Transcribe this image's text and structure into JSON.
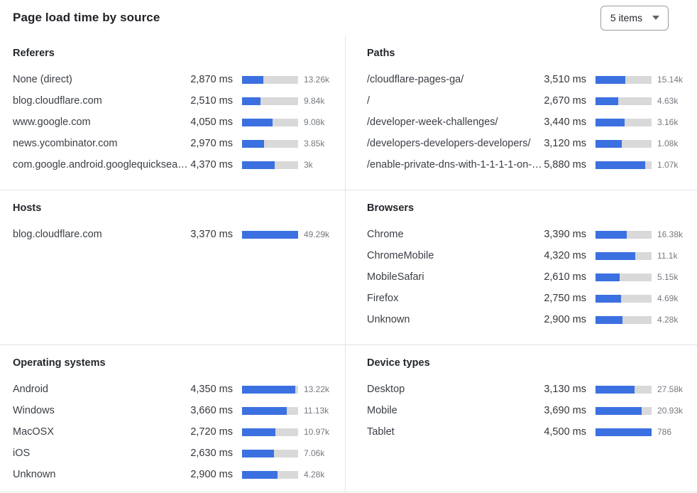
{
  "header": {
    "title": "Page load time by source",
    "dropdown_value": "5 items"
  },
  "colors": {
    "bar_fill": "#3b70e0",
    "bar_track": "#d9d9d9"
  },
  "chart_data": [
    {
      "type": "bar",
      "orientation": "horizontal",
      "title": "Referers",
      "value_unit": "ms",
      "bar_scale_max_ms": 7500,
      "rows": [
        {
          "label": "None (direct)",
          "ms": 2870,
          "ms_label": "2,870 ms",
          "count": "13.26k"
        },
        {
          "label": "blog.cloudflare.com",
          "ms": 2510,
          "ms_label": "2,510 ms",
          "count": "9.84k"
        },
        {
          "label": "www.google.com",
          "ms": 4050,
          "ms_label": "4,050 ms",
          "count": "9.08k"
        },
        {
          "label": "news.ycombinator.com",
          "ms": 2970,
          "ms_label": "2,970 ms",
          "count": "3.85k"
        },
        {
          "label": "com.google.android.googlequicksearc…",
          "ms": 4370,
          "ms_label": "4,370 ms",
          "count": "3k"
        }
      ]
    },
    {
      "type": "bar",
      "orientation": "horizontal",
      "title": "Paths",
      "value_unit": "ms",
      "bar_scale_max_ms": 6600,
      "rows": [
        {
          "label": "/cloudflare-pages-ga/",
          "ms": 3510,
          "ms_label": "3,510 ms",
          "count": "15.14k"
        },
        {
          "label": "/",
          "ms": 2670,
          "ms_label": "2,670 ms",
          "count": "4.63k"
        },
        {
          "label": "/developer-week-challenges/",
          "ms": 3440,
          "ms_label": "3,440 ms",
          "count": "3.16k"
        },
        {
          "label": "/developers-developers-developers/",
          "ms": 3120,
          "ms_label": "3,120 ms",
          "count": "1.08k"
        },
        {
          "label": "/enable-private-dns-with-1-1-1-1-on-…",
          "ms": 5880,
          "ms_label": "5,880 ms",
          "count": "1.07k"
        }
      ]
    },
    {
      "type": "bar",
      "orientation": "horizontal",
      "title": "Hosts",
      "value_unit": "ms",
      "bar_scale_max_ms": 3370,
      "rows": [
        {
          "label": "blog.cloudflare.com",
          "ms": 3370,
          "ms_label": "3,370 ms",
          "count": "49.29k"
        }
      ]
    },
    {
      "type": "bar",
      "orientation": "horizontal",
      "title": "Browsers",
      "value_unit": "ms",
      "bar_scale_max_ms": 6100,
      "rows": [
        {
          "label": "Chrome",
          "ms": 3390,
          "ms_label": "3,390 ms",
          "count": "16.38k"
        },
        {
          "label": "ChromeMobile",
          "ms": 4320,
          "ms_label": "4,320 ms",
          "count": "11.1k"
        },
        {
          "label": "MobileSafari",
          "ms": 2610,
          "ms_label": "2,610 ms",
          "count": "5.15k"
        },
        {
          "label": "Firefox",
          "ms": 2750,
          "ms_label": "2,750 ms",
          "count": "4.69k"
        },
        {
          "label": "Unknown",
          "ms": 2900,
          "ms_label": "2,900 ms",
          "count": "4.28k"
        }
      ]
    },
    {
      "type": "bar",
      "orientation": "horizontal",
      "title": "Operating systems",
      "value_unit": "ms",
      "bar_scale_max_ms": 4600,
      "rows": [
        {
          "label": "Android",
          "ms": 4350,
          "ms_label": "4,350 ms",
          "count": "13.22k"
        },
        {
          "label": "Windows",
          "ms": 3660,
          "ms_label": "3,660 ms",
          "count": "11.13k"
        },
        {
          "label": "MacOSX",
          "ms": 2720,
          "ms_label": "2,720 ms",
          "count": "10.97k"
        },
        {
          "label": "iOS",
          "ms": 2630,
          "ms_label": "2,630 ms",
          "count": "7.06k"
        },
        {
          "label": "Unknown",
          "ms": 2900,
          "ms_label": "2,900 ms",
          "count": "4.28k"
        }
      ]
    },
    {
      "type": "bar",
      "orientation": "horizontal",
      "title": "Device types",
      "value_unit": "ms",
      "bar_scale_max_ms": 4500,
      "rows": [
        {
          "label": "Desktop",
          "ms": 3130,
          "ms_label": "3,130 ms",
          "count": "27.58k"
        },
        {
          "label": "Mobile",
          "ms": 3690,
          "ms_label": "3,690 ms",
          "count": "20.93k"
        },
        {
          "label": "Tablet",
          "ms": 4500,
          "ms_label": "4,500 ms",
          "count": "786"
        }
      ]
    }
  ]
}
